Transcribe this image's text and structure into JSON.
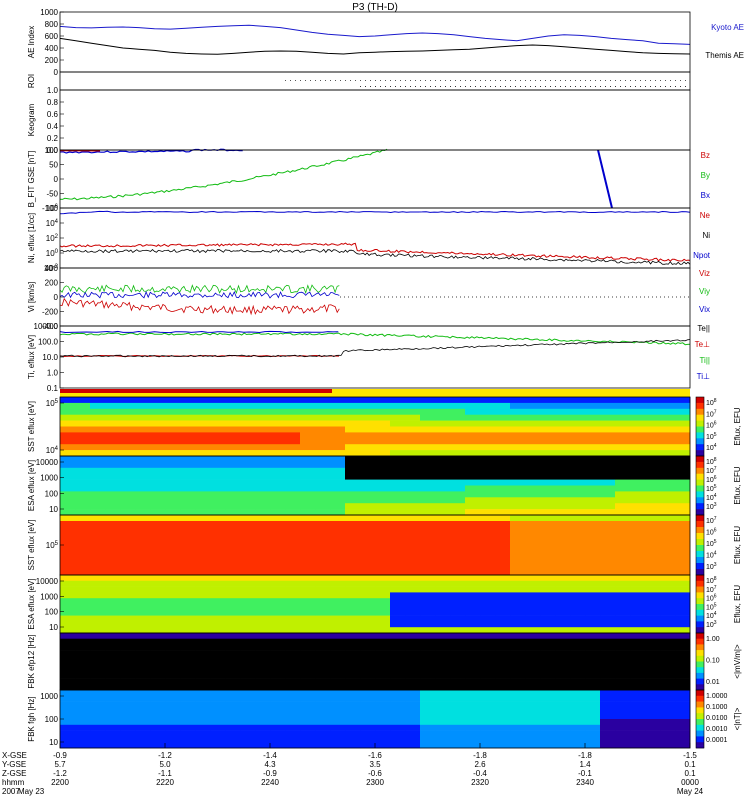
{
  "chart_data": {
    "type": "line",
    "title": "P3 (TH-D)",
    "time_axis": {
      "row_labels": [
        "X-GSE",
        "Y-GSE",
        "Z-GSE",
        "hhmm",
        "2007"
      ],
      "ticks": [
        "2200",
        "2220",
        "2240",
        "2300",
        "2320",
        "2340",
        "0000"
      ],
      "x_gse": [
        "-0.9",
        "-1.2",
        "-1.4",
        "-1.6",
        "-1.8",
        "-1.8",
        "-1.5"
      ],
      "y_gse": [
        "5.7",
        "5.0",
        "4.3",
        "3.5",
        "2.6",
        "1.4",
        "0.1"
      ],
      "z_gse": [
        "-1.2",
        "-1.1",
        "-0.9",
        "-0.6",
        "-0.4",
        "-0.1",
        "0.1"
      ],
      "date_start": "May 23",
      "date_end": "May 24"
    },
    "panels": {
      "ae": {
        "ylabel": "AE Index",
        "ticks": [
          "1000",
          "800",
          "600",
          "400",
          "200",
          "0"
        ],
        "series": [
          {
            "name": "Kyoto AE",
            "color": "#1a1acc",
            "values": [
              760,
              740,
              735,
              745,
              750,
              740,
              720,
              715,
              730,
              745,
              760,
              770,
              780,
              760,
              740,
              700,
              660,
              630,
              610,
              590,
              600,
              620,
              640,
              650,
              640,
              620,
              590,
              560,
              540,
              520,
              560,
              600,
              620,
              610,
              590,
              560,
              540,
              520,
              480,
              470,
              460
            ]
          },
          {
            "name": "Themis AE",
            "color": "#000000",
            "values": [
              560,
              520,
              480,
              440,
              400,
              380,
              360,
              330,
              310,
              300,
              295,
              310,
              330,
              345,
              350,
              345,
              330,
              310,
              300,
              320,
              330,
              340,
              345,
              350,
              360,
              370,
              380,
              400,
              420,
              440,
              450,
              440,
              420,
              400,
              380,
              360,
              340,
              320,
              310,
              305,
              300
            ]
          }
        ]
      },
      "roi": {
        "ylabel": "ROI"
      },
      "keogram": {
        "ylabel": "Keogram",
        "ticks": [
          "1.0",
          "0.8",
          "0.6",
          "0.4",
          "0.2",
          "0.0"
        ]
      },
      "bfit": {
        "ylabel": "B_FIT GSE [nT]",
        "ticks": [
          "100",
          "50",
          "0",
          "-50",
          "-100"
        ],
        "series": [
          {
            "name": "Bz",
            "color": "#cc0000"
          },
          {
            "name": "By",
            "color": "#11bb11"
          },
          {
            "name": "Bx",
            "color": "#0000cc"
          }
        ]
      },
      "density": {
        "ylabel": "Ni, eflux [1/cc]",
        "ticks": [
          "10^6",
          "10^4",
          "10^2",
          "10^0",
          "10^-2"
        ],
        "series": [
          {
            "name": "Ne",
            "color": "#cc0000"
          },
          {
            "name": "Ni",
            "color": "#000000"
          },
          {
            "name": "Npot",
            "color": "#0000cc"
          }
        ]
      },
      "velocity": {
        "ylabel": "Vi [km/s]",
        "ticks": [
          "400",
          "200",
          "0",
          "-200",
          "-400"
        ],
        "series": [
          {
            "name": "Viz",
            "color": "#cc0000"
          },
          {
            "name": "Viy",
            "color": "#11bb11"
          },
          {
            "name": "Vix",
            "color": "#0000cc"
          }
        ]
      },
      "temperature": {
        "ylabel": "Ti, eflux [eV]",
        "ticks": [
          "1000.0",
          "100.0",
          "10.0",
          "1.0",
          "0.1"
        ],
        "series": [
          {
            "name": "Te||",
            "color": "#000000"
          },
          {
            "name": "Te⊥",
            "color": "#cc0000"
          },
          {
            "name": "Ti||",
            "color": "#11bb11"
          },
          {
            "name": "Ti⊥",
            "color": "#0000cc"
          }
        ]
      },
      "spectrograms": [
        {
          "ylabel": "SST eflux [eV]",
          "ticks": [
            "10^5",
            "10^4"
          ],
          "cbar": [
            "10^8",
            "10^7",
            "10^6",
            "10^5",
            "10^4"
          ],
          "cbar_label": "Eflux, EFU"
        },
        {
          "ylabel": "ESA eflux [eV]",
          "ticks": [
            "10000",
            "1000",
            "100",
            "10"
          ],
          "cbar": [
            "10^8",
            "10^7",
            "10^6",
            "10^5",
            "10^4",
            "10^3"
          ],
          "cbar_label": "Eflux, EFU"
        },
        {
          "ylabel": "SST eflux [eV]",
          "ticks": [
            "10^5"
          ],
          "cbar": [
            "10^7",
            "10^6",
            "10^5",
            "10^4",
            "10^3"
          ],
          "cbar_label": "Eflux, EFU"
        },
        {
          "ylabel": "ESA eflux [eV]",
          "ticks": [
            "10000",
            "1000",
            "100",
            "10"
          ],
          "cbar": [
            "10^8",
            "10^7",
            "10^6",
            "10^5",
            "10^4",
            "10^3"
          ],
          "cbar_label": "Eflux, EFU"
        },
        {
          "ylabel": "FBK efp12 [Hz]",
          "ticks": [],
          "cbar": [
            "1.00",
            "0.10",
            "0.01"
          ],
          "cbar_label": "<|mV/m|>"
        },
        {
          "ylabel": "FBK fgh [Hz]",
          "ticks": [
            "1000",
            "100",
            "10"
          ],
          "cbar": [
            "1.0000",
            "0.1000",
            "0.0100",
            "0.0010",
            "0.0001"
          ],
          "cbar_label": "<|nT|>"
        }
      ]
    }
  }
}
